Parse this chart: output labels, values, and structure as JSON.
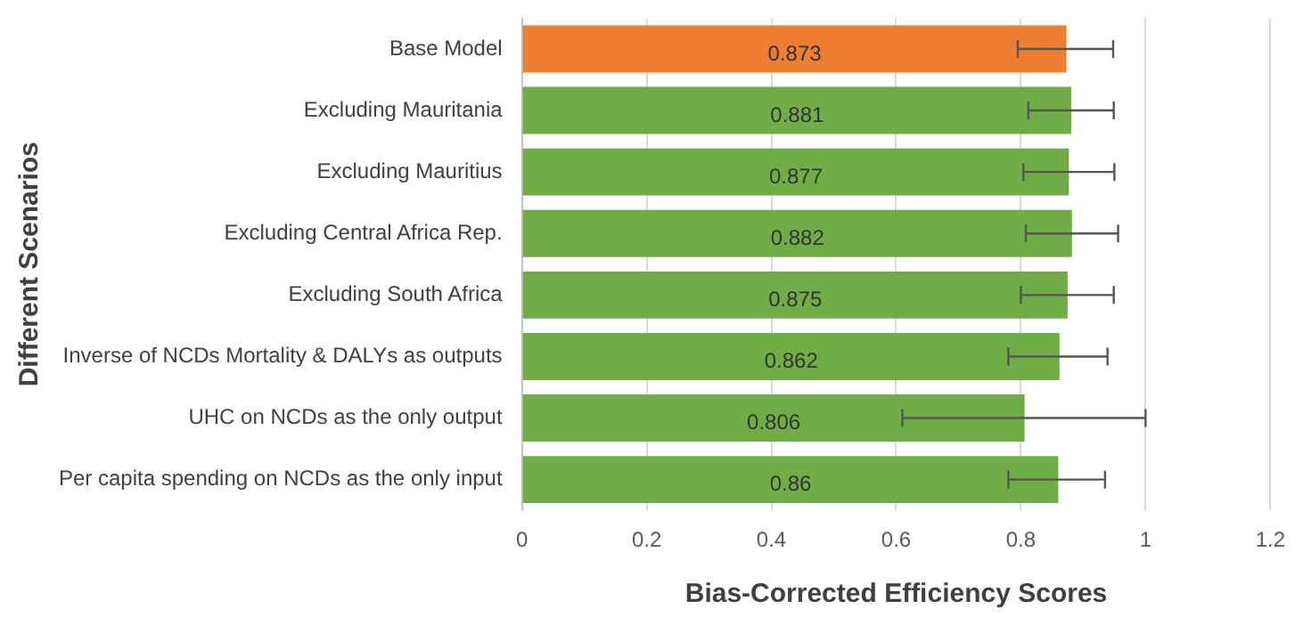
{
  "chart_data": {
    "type": "bar",
    "orientation": "horizontal",
    "xlabel": "Bias-Corrected Efficiency Scores",
    "ylabel": "Different Scenarios",
    "categories": [
      "Base Model",
      "Excluding Mauritania",
      "Excluding Mauritius",
      "Excluding Central Africa Rep.",
      "Excluding South Africa",
      "Inverse of NCDs Mortality & DALYs as outputs",
      "UHC on NCDs as the only output",
      "Per capita spending on NCDs as the only input"
    ],
    "values": [
      0.873,
      0.881,
      0.877,
      0.882,
      0.875,
      0.862,
      0.806,
      0.86
    ],
    "colors": [
      "#ed7d31",
      "#70ad47",
      "#70ad47",
      "#70ad47",
      "#70ad47",
      "#70ad47",
      "#70ad47",
      "#70ad47"
    ],
    "errors": [
      [
        0.795,
        0.948
      ],
      [
        0.812,
        0.949
      ],
      [
        0.804,
        0.95
      ],
      [
        0.808,
        0.956
      ],
      [
        0.8,
        0.949
      ],
      [
        0.78,
        0.939
      ],
      [
        0.61,
        1.0
      ],
      [
        0.78,
        0.935
      ]
    ],
    "xlim": [
      0,
      1.2
    ],
    "xticks": [
      0,
      0.2,
      0.4,
      0.6,
      0.8,
      1,
      1.2
    ],
    "grid": "x",
    "data_labels": true,
    "legend": false
  }
}
